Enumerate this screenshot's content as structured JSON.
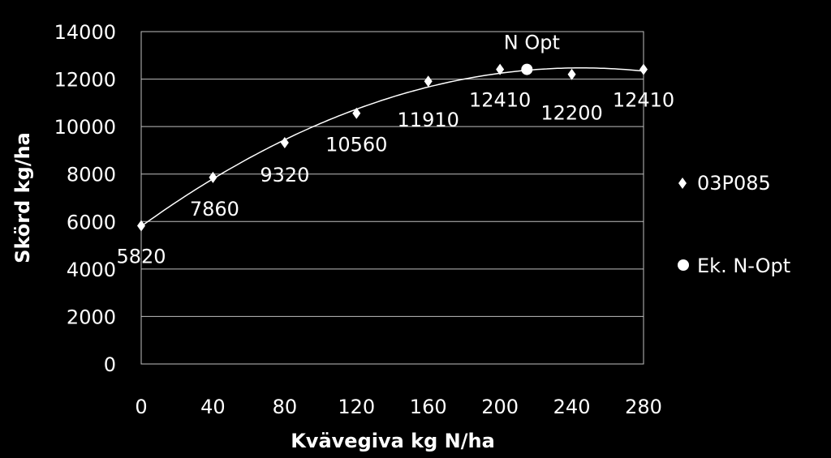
{
  "chart_data": {
    "type": "scatter",
    "xlabel": "Kvävegiva kg N/ha",
    "ylabel": "Skörd kg/ha",
    "xlim": [
      0,
      280
    ],
    "ylim": [
      0,
      14000
    ],
    "x_ticks": [
      0,
      40,
      80,
      120,
      160,
      200,
      240,
      280
    ],
    "y_ticks": [
      0,
      2000,
      4000,
      6000,
      8000,
      10000,
      12000,
      14000
    ],
    "grid": "horizontal",
    "legend_position": "right",
    "series": [
      {
        "name": "03P085",
        "marker": "diamond",
        "color": "#ffffff",
        "x": [
          0,
          40,
          80,
          120,
          160,
          200,
          240,
          280
        ],
        "y": [
          5820,
          7860,
          9320,
          10560,
          11910,
          12410,
          12200,
          12410
        ],
        "labels": [
          "5820",
          "7860",
          "9320",
          "10560",
          "11910",
          "12410",
          "12200",
          "12410"
        ]
      },
      {
        "name": "Ek. N-Opt",
        "marker": "circle",
        "color": "#ffffff",
        "x": [
          215
        ],
        "y": [
          12410
        ],
        "labels": [
          "N Opt"
        ]
      }
    ],
    "trendline": {
      "type": "polynomial",
      "order": 2,
      "x_range": [
        0,
        280
      ],
      "color": "#ffffff"
    }
  }
}
